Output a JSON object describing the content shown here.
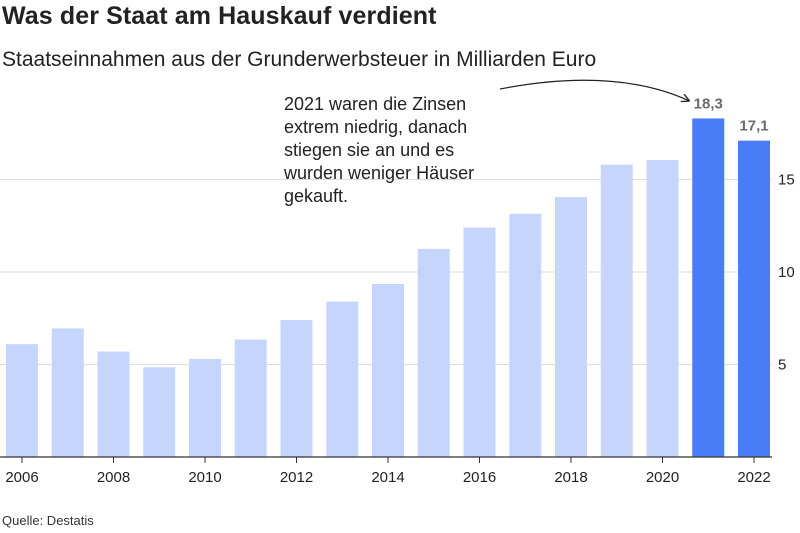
{
  "title": "Was der Staat am Hauskauf verdient",
  "subtitle": "Staatseinnahmen aus der Grunderwerbsteuer in Milliarden Euro",
  "source": "Quelle: Destatis",
  "colors": {
    "bar_light": "#c5d5fb",
    "bar_highlight": "#4a7cf7",
    "grid": "#dddddd",
    "axis": "#333333"
  },
  "chart_data": {
    "type": "bar",
    "title": "Was der Staat am Hauskauf verdient",
    "subtitle": "Staatseinnahmen aus der Grunderwerbsteuer in Milliarden Euro",
    "categories": [
      "2006",
      "2007",
      "2008",
      "2009",
      "2010",
      "2011",
      "2012",
      "2013",
      "2014",
      "2015",
      "2016",
      "2017",
      "2018",
      "2019",
      "2020",
      "2021",
      "2022"
    ],
    "values": [
      6.1,
      6.95,
      5.7,
      4.85,
      5.3,
      6.35,
      7.4,
      8.4,
      9.35,
      11.25,
      12.4,
      13.15,
      14.05,
      15.8,
      16.05,
      18.3,
      17.1
    ],
    "highlighted_categories": [
      "2021",
      "2022"
    ],
    "data_labels": [
      {
        "category": "2021",
        "text": "18,3"
      },
      {
        "category": "2022",
        "text": "17,1"
      }
    ],
    "x_tick_labels": [
      "2006",
      "2008",
      "2010",
      "2012",
      "2014",
      "2016",
      "2018",
      "2020",
      "2022"
    ],
    "y_ticks": [
      5,
      10,
      15
    ],
    "y_tick_labels": [
      "5",
      "10",
      "15"
    ],
    "y_axis_position": "right",
    "ylim": [
      0,
      20
    ],
    "grid": true,
    "xlabel": "",
    "ylabel": "",
    "annotation": {
      "target_category": "2021",
      "lines": [
        "2021 waren die Zinsen",
        "extrem niedrig, danach",
        "stiegen sie an und es",
        "wurden weniger Häuser",
        "gekauft."
      ]
    }
  }
}
